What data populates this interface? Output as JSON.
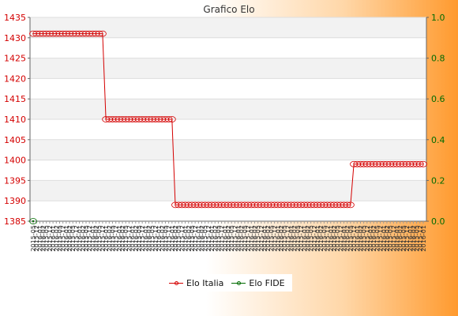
{
  "chart_data": {
    "type": "line",
    "title": "Grafico Elo",
    "y_left": {
      "min": 1385,
      "max": 1435,
      "ticks": [
        "1385",
        "1390",
        "1395",
        "1400",
        "1405",
        "1410",
        "1415",
        "1420",
        "1425",
        "1430",
        "1435"
      ]
    },
    "y_right": {
      "min": 0.0,
      "max": 1.0,
      "ticks": [
        "0.0",
        "0.2",
        "0.4",
        "0.6",
        "0.8",
        "1.0"
      ]
    },
    "series": [
      {
        "name": "Elo Italia",
        "color": "#d40000",
        "axis": "left",
        "segments": [
          {
            "value": 1431,
            "count": 22
          },
          {
            "value": 1410,
            "count": 21
          },
          {
            "value": 1389,
            "count": 54
          },
          {
            "value": 1399,
            "count": 22
          }
        ]
      },
      {
        "name": "Elo FIDE",
        "color": "#006b00",
        "axis": "right",
        "segments": [
          {
            "value": 0,
            "count": 1
          }
        ]
      }
    ],
    "x_tick_count": 119,
    "x_labels_sample": [
      "2015-05",
      "2015-12",
      "2016-01",
      "2016-02"
    ],
    "grid": true,
    "legend": "bottom-center"
  },
  "legend": {
    "italia": "Elo Italia",
    "fide": "Elo FIDE"
  }
}
